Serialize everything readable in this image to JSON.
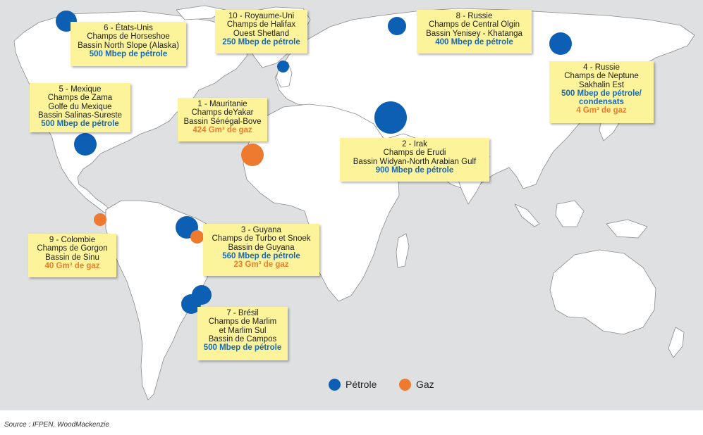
{
  "colors": {
    "oil": "#0c5fb3",
    "gas": "#ee7a30",
    "label_bg": "#fcf39a",
    "sea": "#dfe0e1",
    "land": "#ffffff"
  },
  "labels": {
    "usa": {
      "lines": [
        "6 - États-Unis",
        "Champs de Horseshoe",
        "Bassin North Slope (Alaska)"
      ],
      "oil": "500 Mbep de pétrole"
    },
    "uk": {
      "lines": [
        "10 - Royaume-Uni",
        "Champs de Halifax",
        "Ouest Shetland"
      ],
      "oil": "250 Mbep de pétrole"
    },
    "russia_8": {
      "lines": [
        "8 - Russie",
        "Champs de Central Olgin",
        "Bassin Yenisey - Khatanga"
      ],
      "oil": "400 Mbep de pétrole"
    },
    "russia_4": {
      "lines": [
        "4 - Russie",
        "Champs de Neptune",
        "Sakhalin Est"
      ],
      "oil": "500 Mbep de pétrole/ condensats",
      "gas": "4 Gm³ de gaz"
    },
    "mexico": {
      "lines": [
        "5 - Mexique",
        "Champs de Zama",
        "Golfe du Mexique",
        "Bassin Salinas-Sureste"
      ],
      "oil": "500 Mbep de pétrole"
    },
    "mauritania": {
      "lines": [
        "1 - Mauritanie",
        "Champs deYakar",
        "Bassin Sénégal-Bove"
      ],
      "gas": "424 Gm³ de gaz"
    },
    "iraq": {
      "lines": [
        "2 - Irak",
        "Champs de Erudi",
        "Bassin Widyan-North Arabian Gulf"
      ],
      "oil": "900 Mbep de pétrole"
    },
    "colombia": {
      "lines": [
        "9 - Colombie",
        "Champs de Gorgon",
        "Bassin de Sinu"
      ],
      "gas": "40 Gm³ de gaz"
    },
    "guyana": {
      "lines": [
        "3 - Guyana",
        "Champs de Turbo et Snoek",
        "Bassin de Guyana"
      ],
      "oil": "560 Mbep de pétrole",
      "gas": "23 Gm³ de gaz"
    },
    "brazil": {
      "lines": [
        "7 - Brésil",
        "Champs de Marlim",
        "et Marlim Sul",
        "Bassin de Campos"
      ],
      "oil": "500 Mbep de pétrole"
    }
  },
  "legend": {
    "oil_label": "Pétrole",
    "gas_label": "Gaz"
  },
  "source": "Source : IFPEN, WoodMackenzie"
}
